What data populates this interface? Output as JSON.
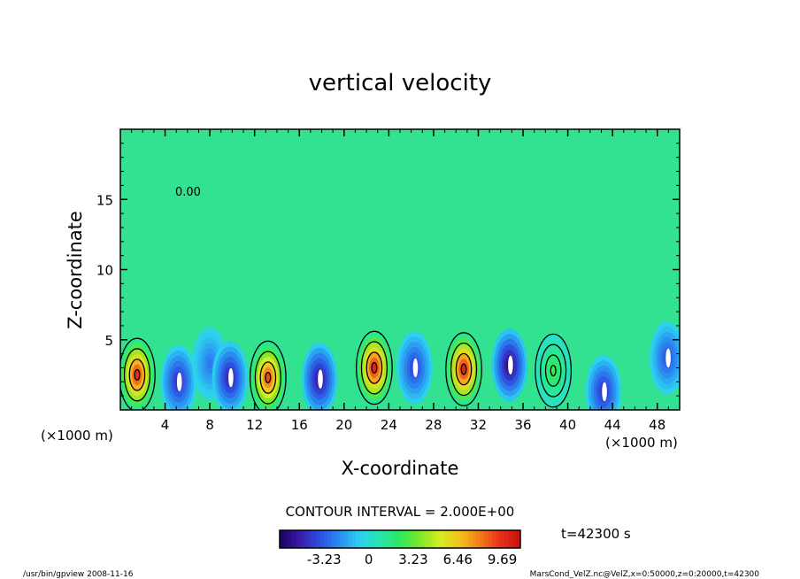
{
  "chart_data": {
    "type": "heatmap",
    "title": "vertical velocity",
    "xlabel": "X-coordinate",
    "ylabel": "Z-coordinate",
    "x_unit": "(×1000 m)",
    "y_unit": "(×1000 m)",
    "xlim": [
      0,
      50
    ],
    "ylim": [
      0,
      20
    ],
    "x_ticks": [
      4,
      8,
      12,
      16,
      20,
      24,
      28,
      32,
      36,
      40,
      44,
      48
    ],
    "x_tick_labels": [
      "4",
      "8",
      "12",
      "16",
      "20",
      "24",
      "28",
      "32",
      "36",
      "40",
      "44",
      "48"
    ],
    "y_ticks": [
      5,
      10,
      15
    ],
    "y_tick_labels": [
      "5",
      "10",
      "15"
    ],
    "contour_interval_text": "CONTOUR INTERVAL = 2.000E+00",
    "contour_label": "0.00",
    "time_text": "t=42300 s",
    "colorbar": {
      "ticks": [
        -3.23,
        0,
        3.23,
        6.46,
        9.69
      ],
      "tick_labels": [
        "-3.23",
        "0",
        "3.23",
        "6.46",
        "9.69"
      ],
      "range": [
        -6.46,
        11.0
      ],
      "colors": [
        "#1a0066",
        "#3a1aa6",
        "#2c4fe0",
        "#2a8cf0",
        "#2ed0f0",
        "#26e6b0",
        "#2ee860",
        "#7ee82a",
        "#d6ec20",
        "#f4c020",
        "#f47a18",
        "#e8301a",
        "#c81010"
      ]
    },
    "cells": [
      {
        "x": 1.5,
        "z": 2.5,
        "w": 9.7
      },
      {
        "x": 5.2,
        "z": 2.0,
        "w": -4.5
      },
      {
        "x": 8.0,
        "z": 3.3,
        "w": -2.5
      },
      {
        "x": 9.8,
        "z": 2.3,
        "w": -5.0
      },
      {
        "x": 13.2,
        "z": 2.3,
        "w": 9.0
      },
      {
        "x": 17.8,
        "z": 2.2,
        "w": -5.5
      },
      {
        "x": 22.7,
        "z": 3.0,
        "w": 10.0
      },
      {
        "x": 26.3,
        "z": 3.0,
        "w": -4.0
      },
      {
        "x": 30.7,
        "z": 2.9,
        "w": 10.0
      },
      {
        "x": 34.8,
        "z": 3.2,
        "w": -6.0
      },
      {
        "x": 38.7,
        "z": 2.8,
        "w": 2.5
      },
      {
        "x": 43.2,
        "z": 1.3,
        "w": -4.5
      },
      {
        "x": 48.9,
        "z": 3.7,
        "w": -3.5
      }
    ]
  },
  "footer": {
    "left": "/usr/bin/gpview   2008-11-16",
    "right": "MarsCond_VelZ.nc@VelZ,x=0:50000,z=0:20000,t=42300"
  }
}
